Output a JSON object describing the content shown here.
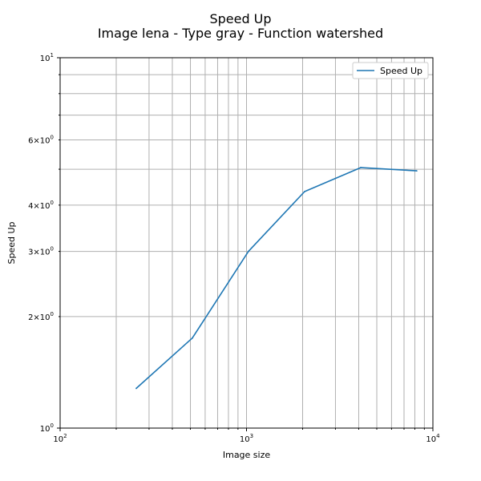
{
  "chart_data": {
    "type": "line",
    "title": "Speed Up",
    "subtitle": "Image lena - Type gray - Function watershed",
    "xlabel": "Image size",
    "ylabel": "Speed Up",
    "xscale": "log",
    "yscale": "log",
    "xlim": [
      100,
      10000
    ],
    "ylim": [
      1,
      10
    ],
    "grid": "on",
    "legend_position": "top-right",
    "x_tick_labels": [
      {
        "value": 100,
        "base": "10",
        "exp": "2"
      },
      {
        "value": 1000,
        "base": "10",
        "exp": "3"
      },
      {
        "value": 10000,
        "base": "10",
        "exp": "4"
      }
    ],
    "y_tick_labels": [
      {
        "value": 1,
        "base": "10",
        "exp": "0",
        "prefix": ""
      },
      {
        "value": 2,
        "base": "10",
        "exp": "0",
        "prefix": "2×"
      },
      {
        "value": 3,
        "base": "10",
        "exp": "0",
        "prefix": "3×"
      },
      {
        "value": 4,
        "base": "10",
        "exp": "0",
        "prefix": "4×"
      },
      {
        "value": 6,
        "base": "10",
        "exp": "0",
        "prefix": "6×"
      },
      {
        "value": 10,
        "base": "10",
        "exp": "1",
        "prefix": ""
      }
    ],
    "series": [
      {
        "name": "Speed Up",
        "color": "#1f77b4",
        "x": [
          256,
          512,
          1024,
          2048,
          4096,
          8192
        ],
        "y": [
          1.28,
          1.75,
          3.0,
          4.35,
          5.05,
          4.95
        ]
      }
    ]
  }
}
